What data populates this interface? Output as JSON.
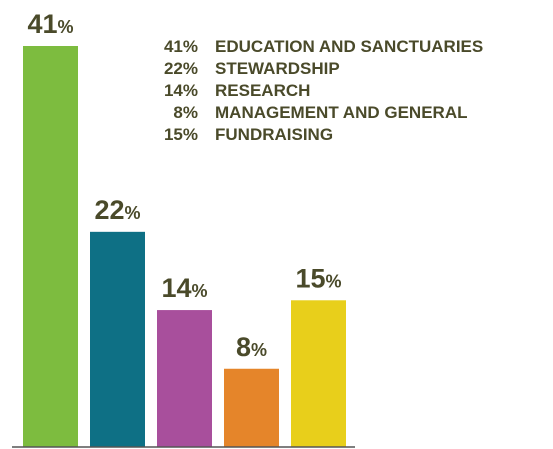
{
  "chart_data": {
    "type": "bar",
    "categories": [
      "EDUCATION AND SANCTUARIES",
      "STEWARDSHIP",
      "RESEARCH",
      "MANAGEMENT AND GENERAL",
      "FUNDRAISING"
    ],
    "values": [
      41,
      22,
      14,
      8,
      15
    ],
    "value_labels": [
      "41",
      "22",
      "14",
      "8",
      "15"
    ],
    "unit": "%",
    "ylim": [
      0,
      41
    ],
    "colors": [
      "#7dbc3f",
      "#0e7085",
      "#a84f9c",
      "#e5852a",
      "#e8cf1b"
    ],
    "label_color": "#4a4a2a",
    "grid": false
  },
  "legend": [
    {
      "pct": "41%",
      "label": "EDUCATION AND SANCTUARIES"
    },
    {
      "pct": "22%",
      "label": "STEWARDSHIP"
    },
    {
      "pct": "14%",
      "label": "RESEARCH"
    },
    {
      "pct": "8%",
      "label": "MANAGEMENT AND GENERAL"
    },
    {
      "pct": "15%",
      "label": "FUNDRAISING"
    }
  ]
}
